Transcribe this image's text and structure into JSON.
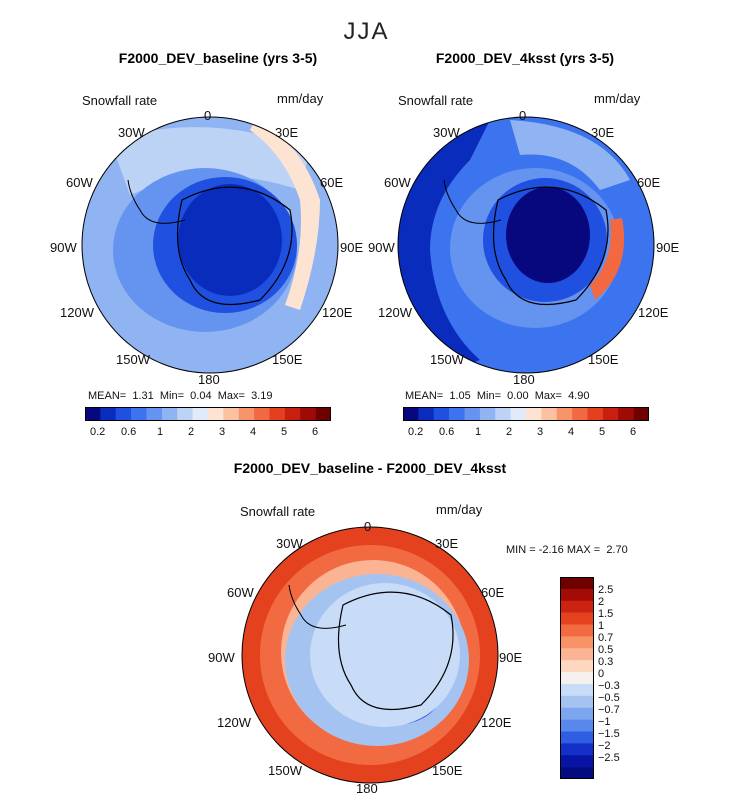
{
  "season": "JJA",
  "panels": [
    {
      "title": "F2000_DEV_baseline (yrs 3-5)",
      "variable": "Snowfall rate",
      "units": "mm/day",
      "stats": {
        "mean_label": "MEAN=",
        "mean": "1.31",
        "min_label": "Min=",
        "min": "0.04",
        "max_label": "Max=",
        "max": "3.19"
      },
      "colorbar_ticks": [
        "0.2",
        "0.6",
        "1",
        "2",
        "3",
        "4",
        "5",
        "6"
      ]
    },
    {
      "title": "F2000_DEV_4ksst (yrs 3-5)",
      "variable": "Snowfall rate",
      "units": "mm/day",
      "stats": {
        "mean_label": "MEAN=",
        "mean": "1.05",
        "min_label": "Min=",
        "min": "0.00",
        "max_label": "Max=",
        "max": "4.90"
      },
      "colorbar_ticks": [
        "0.2",
        "0.6",
        "1",
        "2",
        "3",
        "4",
        "5",
        "6"
      ]
    },
    {
      "title": "F2000_DEV_baseline - F2000_DEV_4ksst",
      "variable": "Snowfall rate",
      "units": "mm/day",
      "stats": {
        "min_label": "MIN =",
        "min": "-2.16",
        "max_label": "MAX =",
        "max": "2.70"
      },
      "colorbar_ticks": [
        "2.5",
        "2",
        "1.5",
        "1",
        "0.7",
        "0.5",
        "0.3",
        "0",
        "−0.3",
        "−0.5",
        "−0.7",
        "−1",
        "−1.5",
        "−2",
        "−2.5"
      ]
    }
  ],
  "longitude_labels": [
    "0",
    "30E",
    "60E",
    "90E",
    "120E",
    "150E",
    "180",
    "150W",
    "120W",
    "90W",
    "60W",
    "30W"
  ],
  "colors": {
    "abs_scale": [
      "#08087e",
      "#0a2cbd",
      "#1f50e0",
      "#3c73ee",
      "#6493f0",
      "#90b4f2",
      "#bdd3f6",
      "#e0eaf8",
      "#fde4d2",
      "#fbc1a0",
      "#f79469",
      "#f26840",
      "#e5401e",
      "#c91f0e",
      "#9e0a05",
      "#6e0000"
    ],
    "diff_scale": [
      "#6e0000",
      "#a20b06",
      "#cc2210",
      "#e4421f",
      "#f26a41",
      "#f79366",
      "#fab494",
      "#fcd8c0",
      "#f7f1ee",
      "#c8dcf7",
      "#a5c3f1",
      "#7da6ee",
      "#5888ec",
      "#2f5ee3",
      "#1430c8",
      "#0815a4",
      "#040a80"
    ],
    "land_outline": "#000000"
  }
}
